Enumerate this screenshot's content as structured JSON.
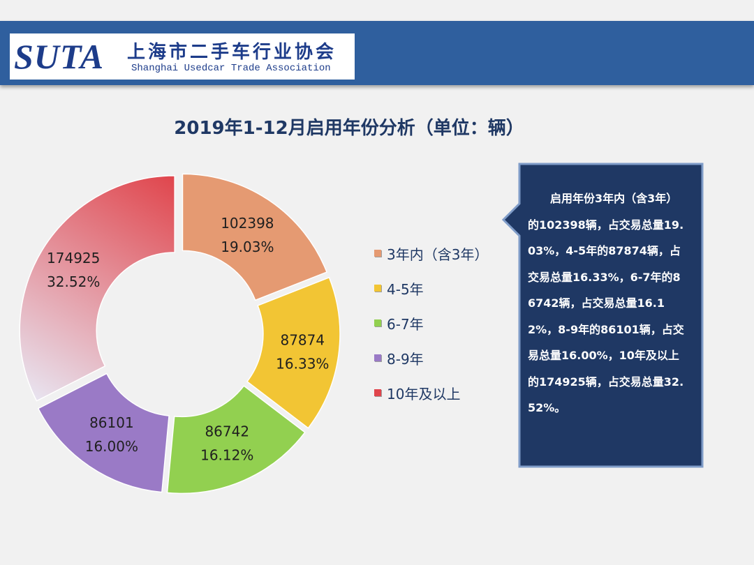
{
  "header": {
    "logo_suta": "SUTA",
    "logo_cn": "上海市二手车行业协会",
    "logo_en": "Shanghai Usedcar Trade Association"
  },
  "callout": {
    "text": "启用年份3年内（含3年）的102398辆，占交易总量19.03%，4-5年的87874辆，占交易总量16.33%，6-7年的86742辆，占交易总量16.12%，8-9年的86101辆，占交易总量16.00%，10年及以上的174925辆，占交易总量32.52%。"
  },
  "chart_data": {
    "type": "pie",
    "title": "2019年1-12月启用年份分析（单位：辆）",
    "donut": true,
    "legend_position": "right",
    "categories": [
      "3年内（含3年）",
      "4-5年",
      "6-7年",
      "8-9年",
      "10年及以上"
    ],
    "values": [
      102398,
      87874,
      86742,
      86101,
      174925
    ],
    "value_labels": [
      "102398",
      "87874",
      "86742",
      "86101",
      "174925"
    ],
    "percent_labels": [
      "19.03%",
      "16.33%",
      "16.12%",
      "16.00%",
      "32.52%"
    ],
    "colors": [
      "#e59a72",
      "#f2c534",
      "#92d050",
      "#9a7ac6",
      "#e0454c"
    ]
  }
}
